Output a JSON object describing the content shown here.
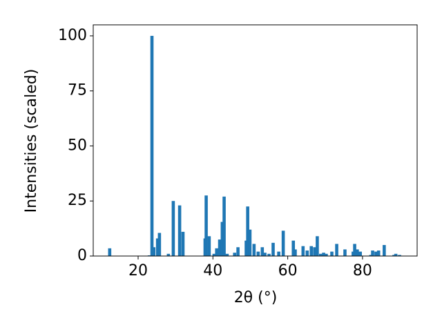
{
  "chart_data": {
    "type": "bar",
    "xlabel": "2θ (°)",
    "ylabel": "Intensities (scaled)",
    "color": "#1f77b4",
    "x": [
      12.4,
      23.0,
      23.7,
      24.2,
      25.2,
      25.7,
      28.1,
      29.4,
      31.1,
      32.0,
      37.9,
      38.2,
      39.0,
      40.3,
      41.0,
      41.8,
      42.5,
      43.0,
      43.8,
      45.8,
      46.7,
      48.9,
      49.3,
      49.9,
      51.0,
      52.1,
      53.2,
      53.9,
      55.0,
      56.1,
      57.6,
      58.8,
      61.5,
      62.0,
      64.1,
      65.2,
      66.3,
      67.2,
      67.9,
      68.8,
      69.6,
      70.3,
      71.8,
      73.1,
      75.3,
      77.5,
      77.9,
      78.6,
      79.4,
      82.2,
      82.7,
      83.6,
      84.3,
      85.8,
      88.4,
      88.9,
      89.9
    ],
    "values": [
      3.5,
      0.3,
      100,
      4,
      8,
      10.5,
      1,
      25,
      23,
      11,
      8,
      27.5,
      9,
      1,
      3.5,
      7.5,
      15.5,
      27,
      1,
      1.5,
      4,
      7,
      22.5,
      12,
      5.5,
      2,
      4,
      1.5,
      1,
      6,
      2,
      11.5,
      7,
      3,
      4.5,
      2.5,
      4.5,
      4,
      9,
      1,
      1.5,
      1,
      2,
      5.5,
      3,
      2,
      5.5,
      3,
      2,
      0.5,
      2.5,
      2,
      2.5,
      5,
      0.5,
      1,
      0.5
    ],
    "xlim": [
      8.0,
      94.6
    ],
    "ylim": [
      0,
      105
    ],
    "xticks": [
      20,
      40,
      60,
      80
    ],
    "yticks": [
      0,
      25,
      50,
      75,
      100
    ]
  }
}
